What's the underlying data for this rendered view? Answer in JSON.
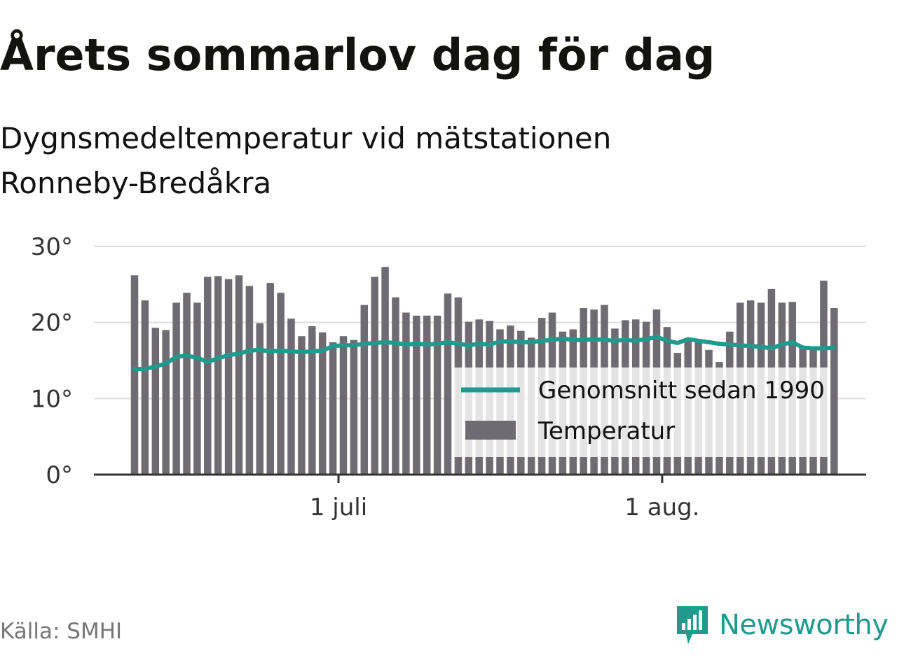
{
  "header": {
    "title": "Årets sommarlov dag för dag",
    "subtitle_line1": "Dygnsmedeltemperatur vid mätstationen",
    "subtitle_line2": "Ronneby-Bredåkra"
  },
  "footer": {
    "source": "Källa: SMHI",
    "brand": "Newsworthy"
  },
  "colors": {
    "bar": "#6e6c72",
    "line": "#1f9a8c",
    "grid": "#dcdcdc",
    "axis": "#333333",
    "brand": "#1f9a8c"
  },
  "icons": {
    "brand_logo": "chart-bubble-icon"
  },
  "chart_data": {
    "type": "bar",
    "x_start": "2019-06-11",
    "x_end": "2019-08-17",
    "ylim": [
      0,
      30
    ],
    "yticks": [
      {
        "value": 0,
        "label": "0°"
      },
      {
        "value": 10,
        "label": "10°"
      },
      {
        "value": 20,
        "label": "20°"
      },
      {
        "value": 30,
        "label": "30°"
      }
    ],
    "xticks": [
      {
        "date": "2019-07-01",
        "label": "1 juli"
      },
      {
        "date": "2019-08-01",
        "label": "1 aug."
      }
    ],
    "grid": true,
    "legend_position": "bottom-right",
    "series": [
      {
        "name": "Temperatur",
        "kind": "bar",
        "dates": [
          "2019-06-11",
          "2019-06-12",
          "2019-06-13",
          "2019-06-14",
          "2019-06-15",
          "2019-06-16",
          "2019-06-17",
          "2019-06-18",
          "2019-06-19",
          "2019-06-20",
          "2019-06-21",
          "2019-06-22",
          "2019-06-23",
          "2019-06-24",
          "2019-06-25",
          "2019-06-26",
          "2019-06-27",
          "2019-06-28",
          "2019-06-29",
          "2019-06-30",
          "2019-07-01",
          "2019-07-02",
          "2019-07-03",
          "2019-07-04",
          "2019-07-05",
          "2019-07-06",
          "2019-07-07",
          "2019-07-08",
          "2019-07-09",
          "2019-07-10",
          "2019-07-11",
          "2019-07-12",
          "2019-07-13",
          "2019-07-14",
          "2019-07-15",
          "2019-07-16",
          "2019-07-17",
          "2019-07-18",
          "2019-07-19",
          "2019-07-20",
          "2019-07-21",
          "2019-07-22",
          "2019-07-23",
          "2019-07-24",
          "2019-07-25",
          "2019-07-26",
          "2019-07-27",
          "2019-07-28",
          "2019-07-29",
          "2019-07-30",
          "2019-07-31",
          "2019-08-01",
          "2019-08-02",
          "2019-08-03",
          "2019-08-04",
          "2019-08-05",
          "2019-08-06",
          "2019-08-07",
          "2019-08-08",
          "2019-08-09",
          "2019-08-10",
          "2019-08-11",
          "2019-08-12",
          "2019-08-13",
          "2019-08-14",
          "2019-08-15",
          "2019-08-16",
          "2019-08-17"
        ],
        "values": [
          26.2,
          22.9,
          19.3,
          19.0,
          22.6,
          23.9,
          22.6,
          26.0,
          26.1,
          25.7,
          26.2,
          24.8,
          19.9,
          25.2,
          23.9,
          20.5,
          18.2,
          19.5,
          18.7,
          17.4,
          18.2,
          17.7,
          22.3,
          26.0,
          27.3,
          23.3,
          21.3,
          20.9,
          20.9,
          20.9,
          23.8,
          23.3,
          20.1,
          20.4,
          20.2,
          19.1,
          19.6,
          18.9,
          18.0,
          20.6,
          21.3,
          18.8,
          19.1,
          21.9,
          21.7,
          22.3,
          19.2,
          20.3,
          20.4,
          20.1,
          21.7,
          19.4,
          16.0,
          17.9,
          17.8,
          16.4,
          14.8,
          18.8,
          22.6,
          22.9,
          22.6,
          24.4,
          22.6,
          22.7,
          16.7,
          16.6,
          25.5,
          21.9
        ]
      },
      {
        "name": "Genomsnitt sedan 1990",
        "kind": "line",
        "values": [
          13.9,
          13.9,
          14.2,
          14.6,
          15.5,
          15.6,
          15.4,
          14.8,
          15.3,
          15.7,
          15.9,
          16.3,
          16.4,
          16.2,
          16.3,
          16.2,
          16.1,
          16.2,
          16.3,
          16.9,
          17.0,
          17.0,
          17.2,
          17.3,
          17.4,
          17.3,
          17.1,
          17.2,
          17.1,
          17.2,
          17.4,
          17.2,
          17.0,
          17.2,
          17.1,
          17.5,
          17.5,
          17.4,
          17.4,
          17.6,
          17.7,
          17.9,
          17.7,
          17.7,
          17.8,
          17.7,
          17.6,
          17.7,
          17.6,
          17.8,
          18.1,
          17.6,
          17.3,
          17.8,
          17.6,
          17.4,
          17.2,
          17.1,
          17.0,
          16.9,
          16.8,
          16.6,
          17.1,
          17.4,
          16.7,
          16.6,
          16.6,
          16.7
        ]
      }
    ]
  }
}
